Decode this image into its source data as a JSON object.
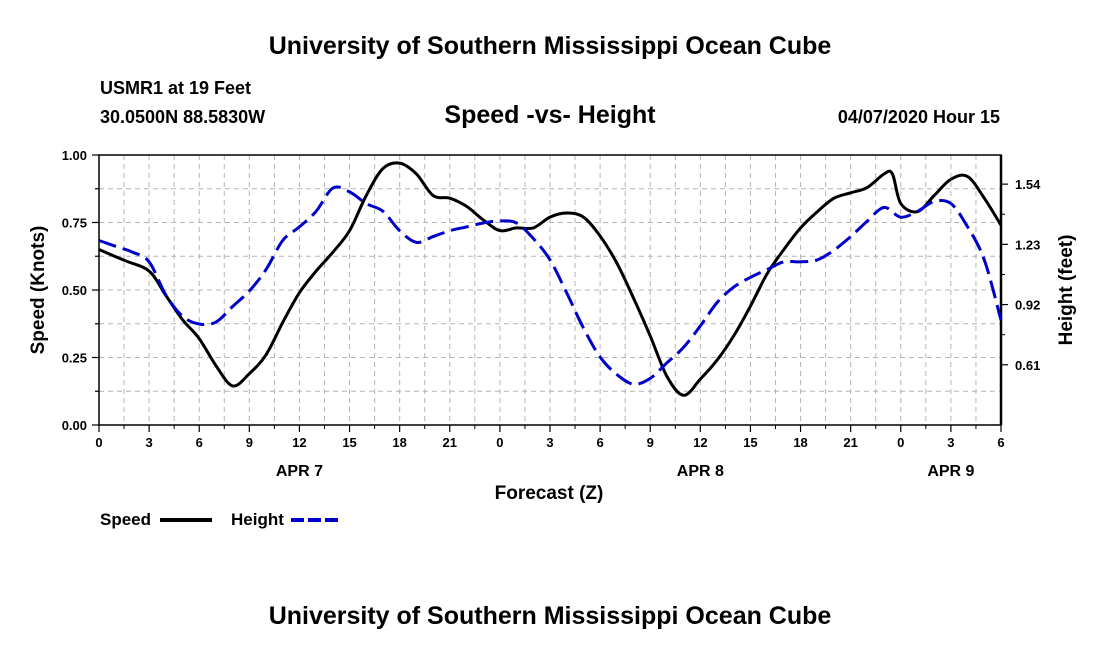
{
  "header": {
    "title": "University of Southern Mississippi Ocean Cube",
    "station": "USMR1 at 19 Feet",
    "coords": "30.0500N 88.5830W",
    "subtitle": "Speed -vs- Height",
    "date": "04/07/2020 Hour 15"
  },
  "footer": {
    "title": "University of Southern Mississippi Ocean Cube"
  },
  "colors": {
    "speed": "#000000",
    "height": "#0000cc",
    "grid": "#b4b4b4"
  },
  "chart_data": {
    "type": "line",
    "title": "Speed -vs- Height",
    "xlabel": "Forecast (Z)",
    "ylabel": "Speed (Knots)",
    "y2label": "Height (feet)",
    "x_range_hours": [
      0,
      54
    ],
    "ylim": [
      0,
      1
    ],
    "y2lim": [
      0.3,
      1.69
    ],
    "x_ticks": [
      {
        "h": 0,
        "label": "0"
      },
      {
        "h": 3,
        "label": "3"
      },
      {
        "h": 6,
        "label": "6"
      },
      {
        "h": 9,
        "label": "9"
      },
      {
        "h": 12,
        "label": "12"
      },
      {
        "h": 15,
        "label": "15"
      },
      {
        "h": 18,
        "label": "18"
      },
      {
        "h": 21,
        "label": "21"
      },
      {
        "h": 24,
        "label": "0"
      },
      {
        "h": 27,
        "label": "3"
      },
      {
        "h": 30,
        "label": "6"
      },
      {
        "h": 33,
        "label": "9"
      },
      {
        "h": 36,
        "label": "12"
      },
      {
        "h": 39,
        "label": "15"
      },
      {
        "h": 42,
        "label": "18"
      },
      {
        "h": 45,
        "label": "21"
      },
      {
        "h": 48,
        "label": "0"
      },
      {
        "h": 51,
        "label": "3"
      },
      {
        "h": 54,
        "label": "6"
      }
    ],
    "day_labels": [
      {
        "h": 12,
        "label": "APR 7"
      },
      {
        "h": 36,
        "label": "APR 8"
      },
      {
        "h": 51,
        "label": "APR 9"
      }
    ],
    "y_ticks": [
      {
        "v": 0.0,
        "label": "0.00"
      },
      {
        "v": 0.25,
        "label": "0.25"
      },
      {
        "v": 0.5,
        "label": "0.50"
      },
      {
        "v": 0.75,
        "label": "0.75"
      },
      {
        "v": 1.0,
        "label": "1.00"
      }
    ],
    "y2_ticks": [
      {
        "v": 0.61,
        "label": "0.61"
      },
      {
        "v": 0.92,
        "label": "0.92"
      },
      {
        "v": 1.23,
        "label": "1.23"
      },
      {
        "v": 1.54,
        "label": "1.54"
      }
    ],
    "legend": [
      {
        "name": "Speed",
        "series": "speed"
      },
      {
        "name": "Height",
        "series": "height"
      }
    ],
    "series": [
      {
        "name": "Speed",
        "key": "speed",
        "axis": "left",
        "style": "solid",
        "points": [
          [
            0,
            0.65
          ],
          [
            1.5,
            0.61
          ],
          [
            3,
            0.57
          ],
          [
            4,
            0.48
          ],
          [
            5,
            0.39
          ],
          [
            6,
            0.32
          ],
          [
            7,
            0.22
          ],
          [
            8,
            0.145
          ],
          [
            9,
            0.19
          ],
          [
            10,
            0.26
          ],
          [
            11,
            0.38
          ],
          [
            12,
            0.49
          ],
          [
            13,
            0.57
          ],
          [
            14,
            0.64
          ],
          [
            15,
            0.72
          ],
          [
            16,
            0.85
          ],
          [
            17,
            0.95
          ],
          [
            18,
            0.97
          ],
          [
            19,
            0.93
          ],
          [
            20,
            0.85
          ],
          [
            21,
            0.84
          ],
          [
            22,
            0.81
          ],
          [
            23,
            0.76
          ],
          [
            24,
            0.72
          ],
          [
            25,
            0.73
          ],
          [
            26,
            0.73
          ],
          [
            27,
            0.77
          ],
          [
            28,
            0.785
          ],
          [
            29,
            0.77
          ],
          [
            30,
            0.7
          ],
          [
            31,
            0.6
          ],
          [
            32,
            0.47
          ],
          [
            33,
            0.33
          ],
          [
            34,
            0.18
          ],
          [
            35,
            0.11
          ],
          [
            36,
            0.17
          ],
          [
            37,
            0.24
          ],
          [
            38,
            0.33
          ],
          [
            39,
            0.44
          ],
          [
            40,
            0.56
          ],
          [
            41,
            0.65
          ],
          [
            42,
            0.73
          ],
          [
            43,
            0.79
          ],
          [
            44,
            0.84
          ],
          [
            45,
            0.86
          ],
          [
            46,
            0.88
          ],
          [
            47,
            0.93
          ],
          [
            47.5,
            0.93
          ],
          [
            48,
            0.82
          ],
          [
            49,
            0.79
          ],
          [
            50,
            0.85
          ],
          [
            51,
            0.91
          ],
          [
            52,
            0.92
          ],
          [
            53,
            0.84
          ],
          [
            54,
            0.74
          ]
        ]
      },
      {
        "name": "Height",
        "key": "height",
        "axis": "right",
        "style": "dashed",
        "points": [
          [
            0,
            1.25
          ],
          [
            1,
            1.22
          ],
          [
            2,
            1.19
          ],
          [
            3,
            1.14
          ],
          [
            4,
            0.97
          ],
          [
            5,
            0.86
          ],
          [
            6,
            0.82
          ],
          [
            7,
            0.83
          ],
          [
            8,
            0.91
          ],
          [
            9,
            0.99
          ],
          [
            10,
            1.1
          ],
          [
            11,
            1.25
          ],
          [
            12,
            1.32
          ],
          [
            13,
            1.4
          ],
          [
            14,
            1.52
          ],
          [
            15,
            1.5
          ],
          [
            16,
            1.44
          ],
          [
            17,
            1.4
          ],
          [
            18,
            1.3
          ],
          [
            19,
            1.24
          ],
          [
            20,
            1.27
          ],
          [
            21,
            1.3
          ],
          [
            22,
            1.32
          ],
          [
            23,
            1.34
          ],
          [
            24,
            1.35
          ],
          [
            25,
            1.34
          ],
          [
            26,
            1.26
          ],
          [
            27,
            1.15
          ],
          [
            28,
            0.98
          ],
          [
            29,
            0.8
          ],
          [
            30,
            0.65
          ],
          [
            31,
            0.56
          ],
          [
            32,
            0.51
          ],
          [
            33,
            0.54
          ],
          [
            34,
            0.62
          ],
          [
            35,
            0.7
          ],
          [
            36,
            0.81
          ],
          [
            37,
            0.93
          ],
          [
            38,
            1.01
          ],
          [
            39,
            1.06
          ],
          [
            40,
            1.1
          ],
          [
            41,
            1.14
          ],
          [
            42,
            1.14
          ],
          [
            43,
            1.15
          ],
          [
            44,
            1.2
          ],
          [
            45,
            1.27
          ],
          [
            46,
            1.35
          ],
          [
            47,
            1.42
          ],
          [
            48,
            1.37
          ],
          [
            49,
            1.4
          ],
          [
            50,
            1.45
          ],
          [
            51,
            1.44
          ],
          [
            52,
            1.32
          ],
          [
            53,
            1.15
          ],
          [
            54,
            0.84
          ]
        ]
      }
    ]
  }
}
